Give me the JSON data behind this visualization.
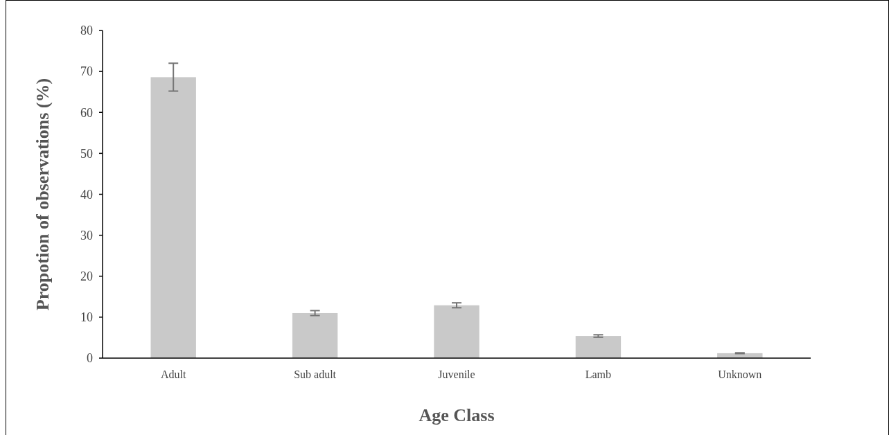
{
  "chart_data": {
    "type": "bar",
    "xlabel": "Age Class",
    "ylabel": "Propotion of observations (%)",
    "categories": [
      "Adult",
      "Sub adult",
      "Juvenile",
      "Lamb",
      "Unknown"
    ],
    "values": [
      68.6,
      11.0,
      12.9,
      5.4,
      1.2
    ],
    "errors": [
      3.4,
      0.6,
      0.6,
      0.3,
      0.1
    ],
    "color": "#c9c9c9",
    "ylim": [
      0,
      80
    ],
    "yticks": [
      0,
      10,
      20,
      30,
      40,
      50,
      60,
      70,
      80
    ],
    "grid": false
  }
}
